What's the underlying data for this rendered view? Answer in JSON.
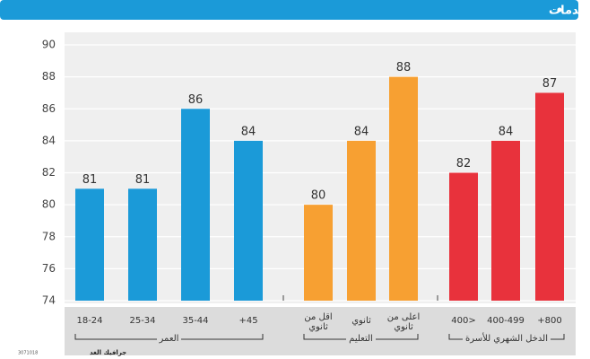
{
  "chart_data": {
    "type": "bar",
    "title": "ضد رفع الضرائب لتحسين الخدمات",
    "groups": [
      {
        "name": "العمر",
        "color": "#1b9ad8",
        "categories": [
          "18-24",
          "25-34",
          "35-44",
          "45+"
        ],
        "values": [
          81,
          81,
          86,
          84
        ]
      },
      {
        "name": "التعليم",
        "color": "#f7a032",
        "categories": [
          "اقل من ثانوي",
          "ثانوي",
          "اعلى من ثانوي"
        ],
        "values": [
          80,
          84,
          88
        ]
      },
      {
        "name": "الدخل الشهري للأسرة",
        "color": "#e8323c",
        "categories": [
          "<400",
          "400-499",
          "800+"
        ],
        "values": [
          82,
          84,
          87
        ]
      }
    ],
    "ylim": [
      74,
      90
    ],
    "yticks": [
      74,
      76,
      78,
      80,
      82,
      84,
      86,
      88,
      90
    ],
    "grid": true,
    "source": "جرافيك الغد",
    "code": "3071018"
  }
}
